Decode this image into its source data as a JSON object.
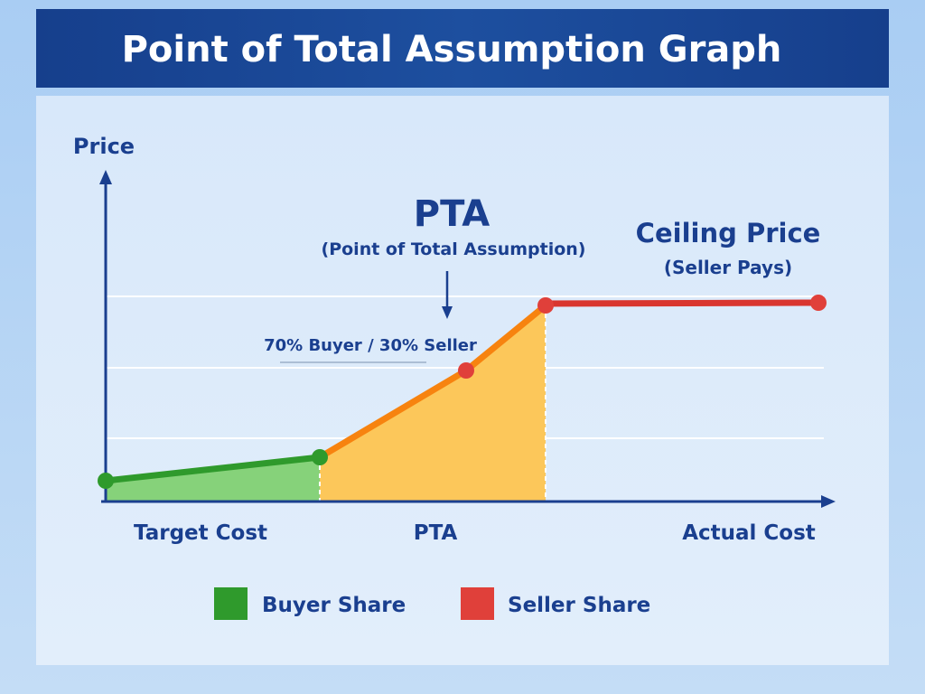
{
  "header": {
    "title": "Point of Total Assumption Graph"
  },
  "axes": {
    "y_label": "Price",
    "x_labels": [
      "Target Cost",
      "PTA",
      "Actual Cost"
    ]
  },
  "annotations": {
    "pta_title": "PTA",
    "pta_subtitle": "(Point of Total Assumption)",
    "ceiling_title": "Ceiling Price",
    "ceiling_subtitle": "(Seller Pays)",
    "split": "70% Buyer / 30% Seller"
  },
  "legend": [
    "Buyer Share",
    "Seller Share"
  ]
}
